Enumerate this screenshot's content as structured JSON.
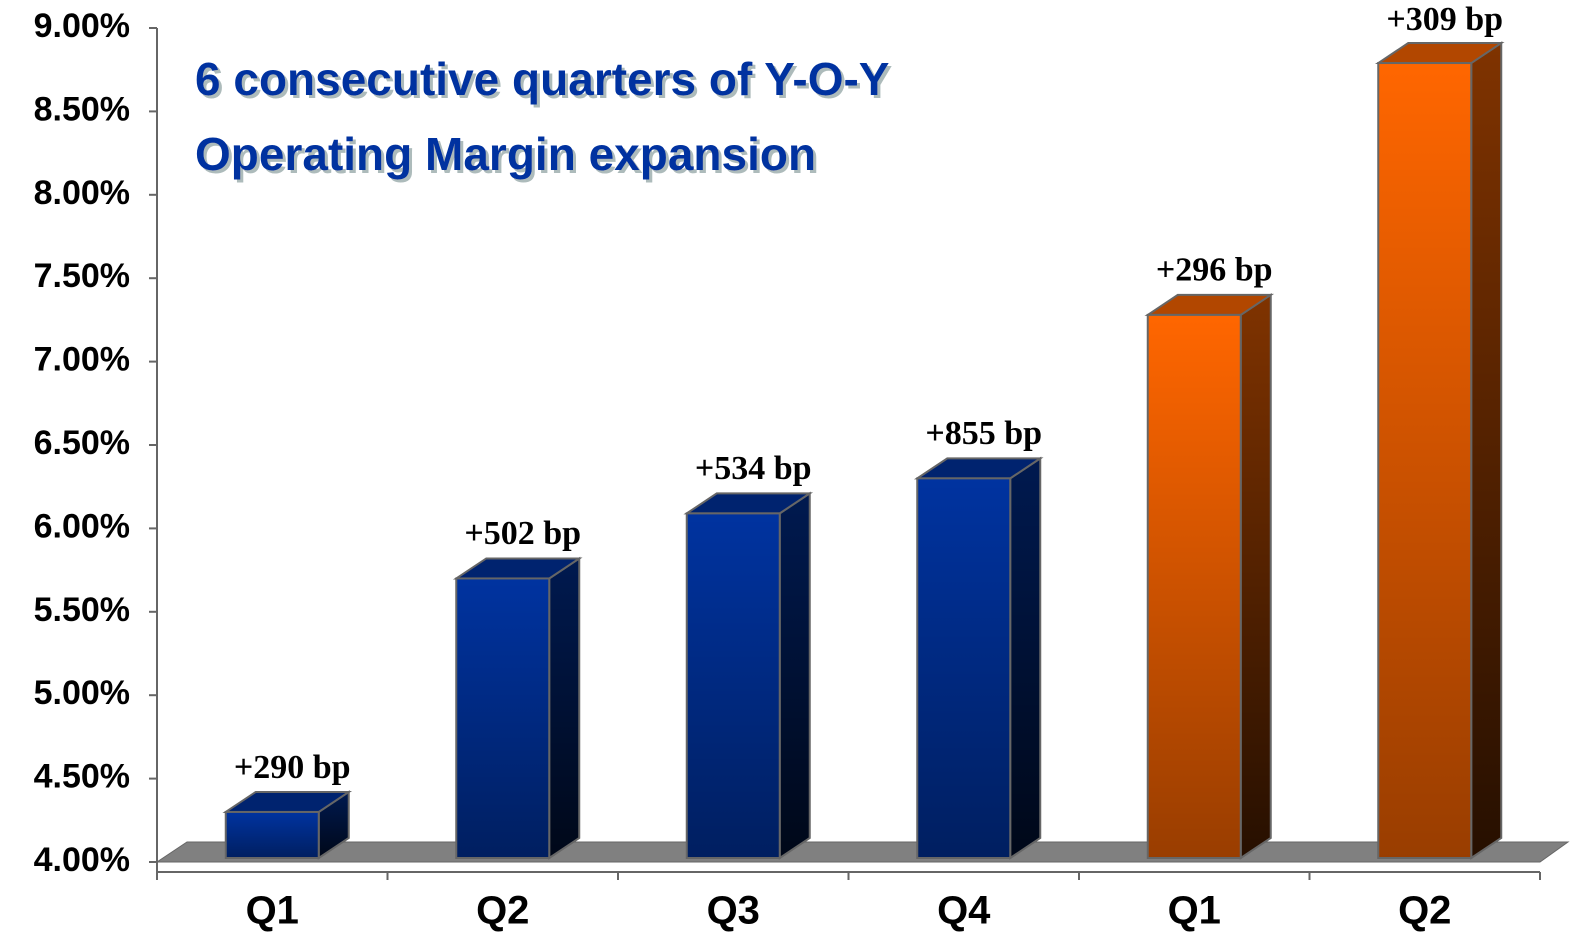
{
  "chart_data": {
    "type": "bar3d",
    "title_lines": [
      "6 consecutive quarters of Y-O-Y",
      "Operating Margin expansion"
    ],
    "categories": [
      "Q1",
      "Q2",
      "Q3",
      "Q4",
      "Q1",
      "Q2"
    ],
    "values": [
      4.3,
      5.7,
      6.09,
      6.3,
      7.28,
      8.79
    ],
    "colors": [
      "#0033a0",
      "#0033a0",
      "#0033a0",
      "#0033a0",
      "#ff6600",
      "#ff6600"
    ],
    "bar_labels": [
      "+290 bp",
      "+502 bp",
      "+534 bp",
      "+855 bp",
      "+296 bp",
      "+309 bp"
    ],
    "ylim": [
      4.0,
      9.0
    ],
    "yticks": [
      {
        "value": 4.0,
        "label": "4.00%"
      },
      {
        "value": 4.5,
        "label": "4.50%"
      },
      {
        "value": 5.0,
        "label": "5.00%"
      },
      {
        "value": 5.5,
        "label": "5.50%"
      },
      {
        "value": 6.0,
        "label": "6.00%"
      },
      {
        "value": 6.5,
        "label": "6.50%"
      },
      {
        "value": 7.0,
        "label": "7.00%"
      },
      {
        "value": 7.5,
        "label": "7.50%"
      },
      {
        "value": 8.0,
        "label": "8.00%"
      },
      {
        "value": 8.5,
        "label": "8.50%"
      },
      {
        "value": 9.0,
        "label": "9.00%"
      }
    ]
  }
}
